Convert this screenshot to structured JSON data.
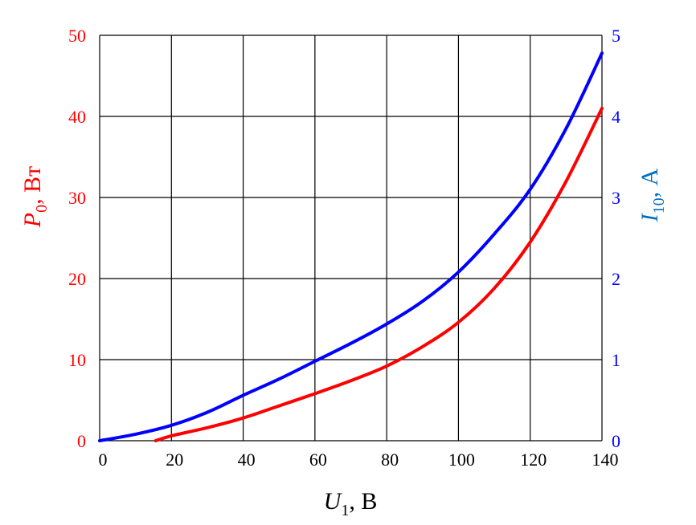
{
  "chart_data": {
    "type": "line",
    "x_axis": {
      "label_var": "U",
      "label_sub": "1",
      "label_unit": ", В",
      "range": [
        0,
        140
      ],
      "ticks": [
        0,
        20,
        40,
        60,
        80,
        100,
        120,
        140
      ],
      "tick_labels": [
        "0",
        "20",
        "40",
        "60",
        "80",
        "100",
        "120",
        "140"
      ]
    },
    "y_left": {
      "label_var": "P",
      "label_sub": "0",
      "label_unit": ", Вт",
      "range": [
        0,
        50
      ],
      "ticks": [
        0,
        10,
        20,
        30,
        40,
        50
      ],
      "tick_labels": [
        "0",
        "10",
        "20",
        "30",
        "40",
        "50"
      ],
      "color": "#ff0000"
    },
    "y_right": {
      "label_var": "I",
      "label_sub": "10",
      "label_unit": ", А",
      "range": [
        0,
        5
      ],
      "ticks": [
        0,
        1,
        2,
        3,
        4,
        5
      ],
      "tick_labels": [
        "0",
        "1",
        "2",
        "3",
        "4",
        "5"
      ],
      "color": "#0000ff",
      "label_color": "#0070c0"
    },
    "grid": true,
    "series": [
      {
        "axis": "left",
        "color": "#ff0000",
        "x": [
          15.6,
          20,
          30,
          40,
          50,
          60,
          70,
          80,
          90,
          100,
          110,
          120,
          130,
          140
        ],
        "y": [
          0,
          0.6,
          1.6,
          2.8,
          4.3,
          5.8,
          7.4,
          9.2,
          11.6,
          14.6,
          18.8,
          24.5,
          32,
          41
        ]
      },
      {
        "axis": "right",
        "color": "#0000ff",
        "x": [
          0,
          10,
          20,
          30,
          40,
          50,
          60,
          70,
          80,
          90,
          100,
          110,
          120,
          130,
          140
        ],
        "y": [
          0,
          0.08,
          0.19,
          0.35,
          0.56,
          0.76,
          0.98,
          1.2,
          1.44,
          1.72,
          2.08,
          2.55,
          3.1,
          3.85,
          4.78
        ]
      }
    ]
  }
}
